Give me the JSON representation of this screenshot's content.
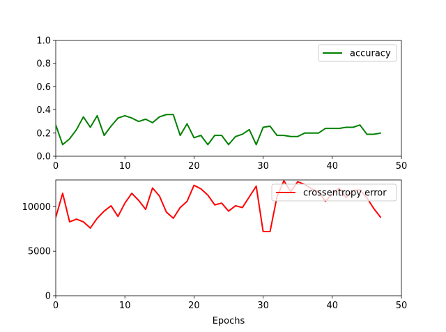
{
  "chart_data": [
    {
      "type": "line",
      "x": [
        0,
        1,
        2,
        3,
        4,
        5,
        6,
        7,
        8,
        9,
        10,
        11,
        12,
        13,
        14,
        15,
        16,
        17,
        18,
        19,
        20,
        21,
        22,
        23,
        24,
        25,
        26,
        27,
        28,
        29,
        30,
        31,
        32,
        33,
        34,
        35,
        36,
        37,
        38,
        39,
        40,
        41,
        42,
        43,
        44,
        45,
        46,
        47
      ],
      "series": [
        {
          "name": "accuracy",
          "color": "#008000",
          "values": [
            0.27,
            0.1,
            0.15,
            0.23,
            0.34,
            0.25,
            0.35,
            0.18,
            0.26,
            0.33,
            0.35,
            0.33,
            0.3,
            0.32,
            0.29,
            0.34,
            0.36,
            0.36,
            0.18,
            0.28,
            0.16,
            0.18,
            0.1,
            0.18,
            0.18,
            0.1,
            0.17,
            0.19,
            0.23,
            0.1,
            0.25,
            0.26,
            0.18,
            0.18,
            0.17,
            0.17,
            0.2,
            0.2,
            0.2,
            0.24,
            0.24,
            0.24,
            0.25,
            0.25,
            0.27,
            0.19,
            0.19,
            0.2
          ]
        }
      ],
      "xlim": [
        0,
        50
      ],
      "ylim": [
        0.0,
        1.0
      ],
      "xticks": [
        "0",
        "10",
        "20",
        "30",
        "40",
        "50"
      ],
      "yticks": [
        "0.0",
        "0.2",
        "0.4",
        "0.6",
        "0.8",
        "1.0"
      ],
      "legend_position": "top-right",
      "grid": false
    },
    {
      "type": "line",
      "x": [
        0,
        1,
        2,
        3,
        4,
        5,
        6,
        7,
        8,
        9,
        10,
        11,
        12,
        13,
        14,
        15,
        16,
        17,
        18,
        19,
        20,
        21,
        22,
        23,
        24,
        25,
        26,
        27,
        28,
        29,
        30,
        31,
        32,
        33,
        34,
        35,
        36,
        37,
        38,
        39,
        40,
        41,
        42,
        43,
        44,
        45,
        46,
        47
      ],
      "series": [
        {
          "name": "crossentropy error",
          "color": "#ff0000",
          "values": [
            8800,
            11500,
            8300,
            8600,
            8300,
            7600,
            8700,
            9500,
            10100,
            8900,
            10400,
            11500,
            10700,
            9700,
            12100,
            11200,
            9400,
            8700,
            9900,
            10600,
            12400,
            12000,
            11300,
            10200,
            10400,
            9500,
            10100,
            9900,
            11100,
            12300,
            7200,
            7200,
            11100,
            12900,
            11700,
            12800,
            12500,
            12000,
            11700,
            10600,
            11400,
            12100,
            11000,
            11800,
            11900,
            11000,
            9800,
            8800
          ]
        }
      ],
      "xlim": [
        0,
        50
      ],
      "ylim": [
        0,
        13000
      ],
      "xticks": [
        "0",
        "10",
        "20",
        "30",
        "40",
        "50"
      ],
      "yticks": [
        "0",
        "5000",
        "10000"
      ],
      "xlabel": "Epochs",
      "legend_position": "top-right",
      "grid": false
    }
  ]
}
